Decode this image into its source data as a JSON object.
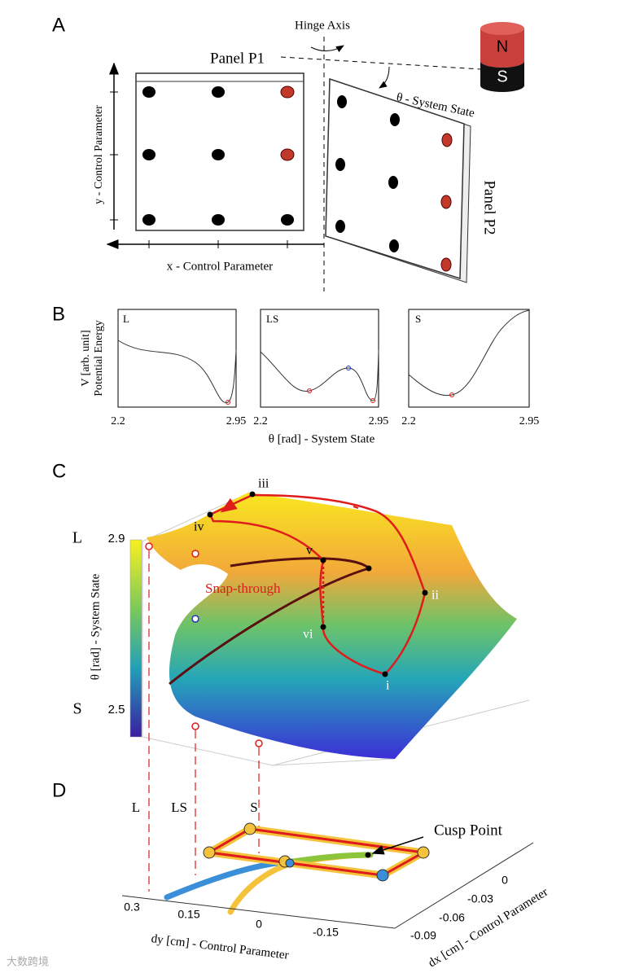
{
  "panel_a": {
    "letter": "A",
    "hinge_axis": "Hinge Axis",
    "panel_p1": "Panel P1",
    "panel_p2": "Panel P2",
    "theta_label": "θ - System State",
    "y_label": "y - Control Parameter",
    "x_label": "x - Control Parameter",
    "magnet_n": "N",
    "magnet_s": "S"
  },
  "panel_b": {
    "letter": "B",
    "y_label_1": "V [arb. unit]",
    "y_label_2": "Potential Energy",
    "x_label": "θ [rad] - System State",
    "plots": [
      {
        "title": "L",
        "xtick_left": "2.2",
        "xtick_right": "2.95"
      },
      {
        "title": "LS",
        "xtick_left": "2.2",
        "xtick_right": "2.95"
      },
      {
        "title": "S",
        "xtick_left": "2.2",
        "xtick_right": "2.95"
      }
    ]
  },
  "panel_c": {
    "letter": "C",
    "point_labels": [
      "iii",
      "iv",
      "v",
      "vi",
      "i",
      "ii"
    ],
    "annotation": "Snap-through",
    "z_label": "θ [rad] - System State",
    "colorbar_top": "2.9",
    "colorbar_bottom": "2.5",
    "state_top": "L",
    "state_bottom": "S"
  },
  "panel_d": {
    "letter": "D",
    "labels": [
      "L",
      "LS",
      "S"
    ],
    "cusp": "Cusp Point",
    "dy_ticks": [
      "0.3",
      "0.15",
      "0",
      "-0.15"
    ],
    "dy_label": "dy [cm] - Control Parameter",
    "dx_ticks": [
      "0",
      "-0.03",
      "-0.06",
      "-0.09"
    ],
    "dx_label": "dx [cm] - Control Parameter"
  },
  "watermark": "大数跨境"
}
